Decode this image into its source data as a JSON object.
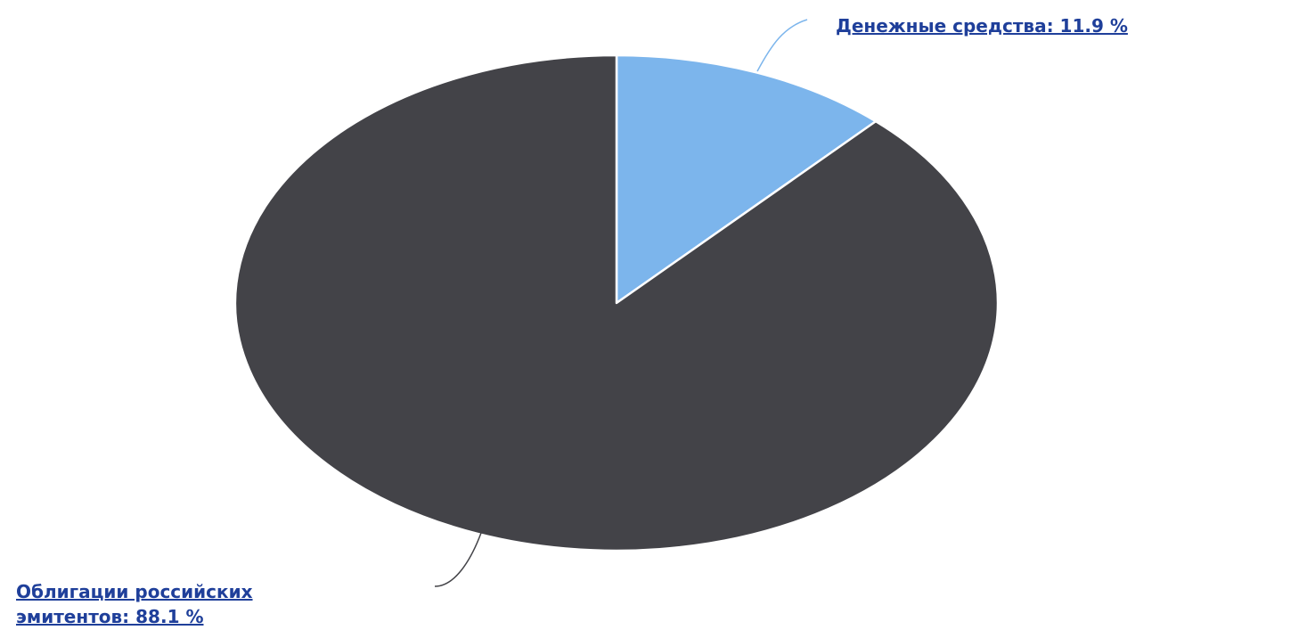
{
  "chart_data": {
    "type": "pie",
    "unit": "%",
    "start_angle_deg": 0,
    "direction": "clockwise",
    "slices": [
      {
        "name": "Денежные средства",
        "value": 11.9,
        "color": "#7cb5ec",
        "label_lines": [
          "Денежные средства: 11.9 %"
        ]
      },
      {
        "name": "Облигации российских эмитентов",
        "value": 88.1,
        "color": "#434348",
        "label_lines": [
          "Облигации российских",
          "эмитентов: 88.1 %"
        ]
      }
    ],
    "label_color": "#1f3f9a",
    "connector_colors": [
      "#7cb5ec",
      "#434348"
    ],
    "slice_border_color": "#ffffff"
  }
}
